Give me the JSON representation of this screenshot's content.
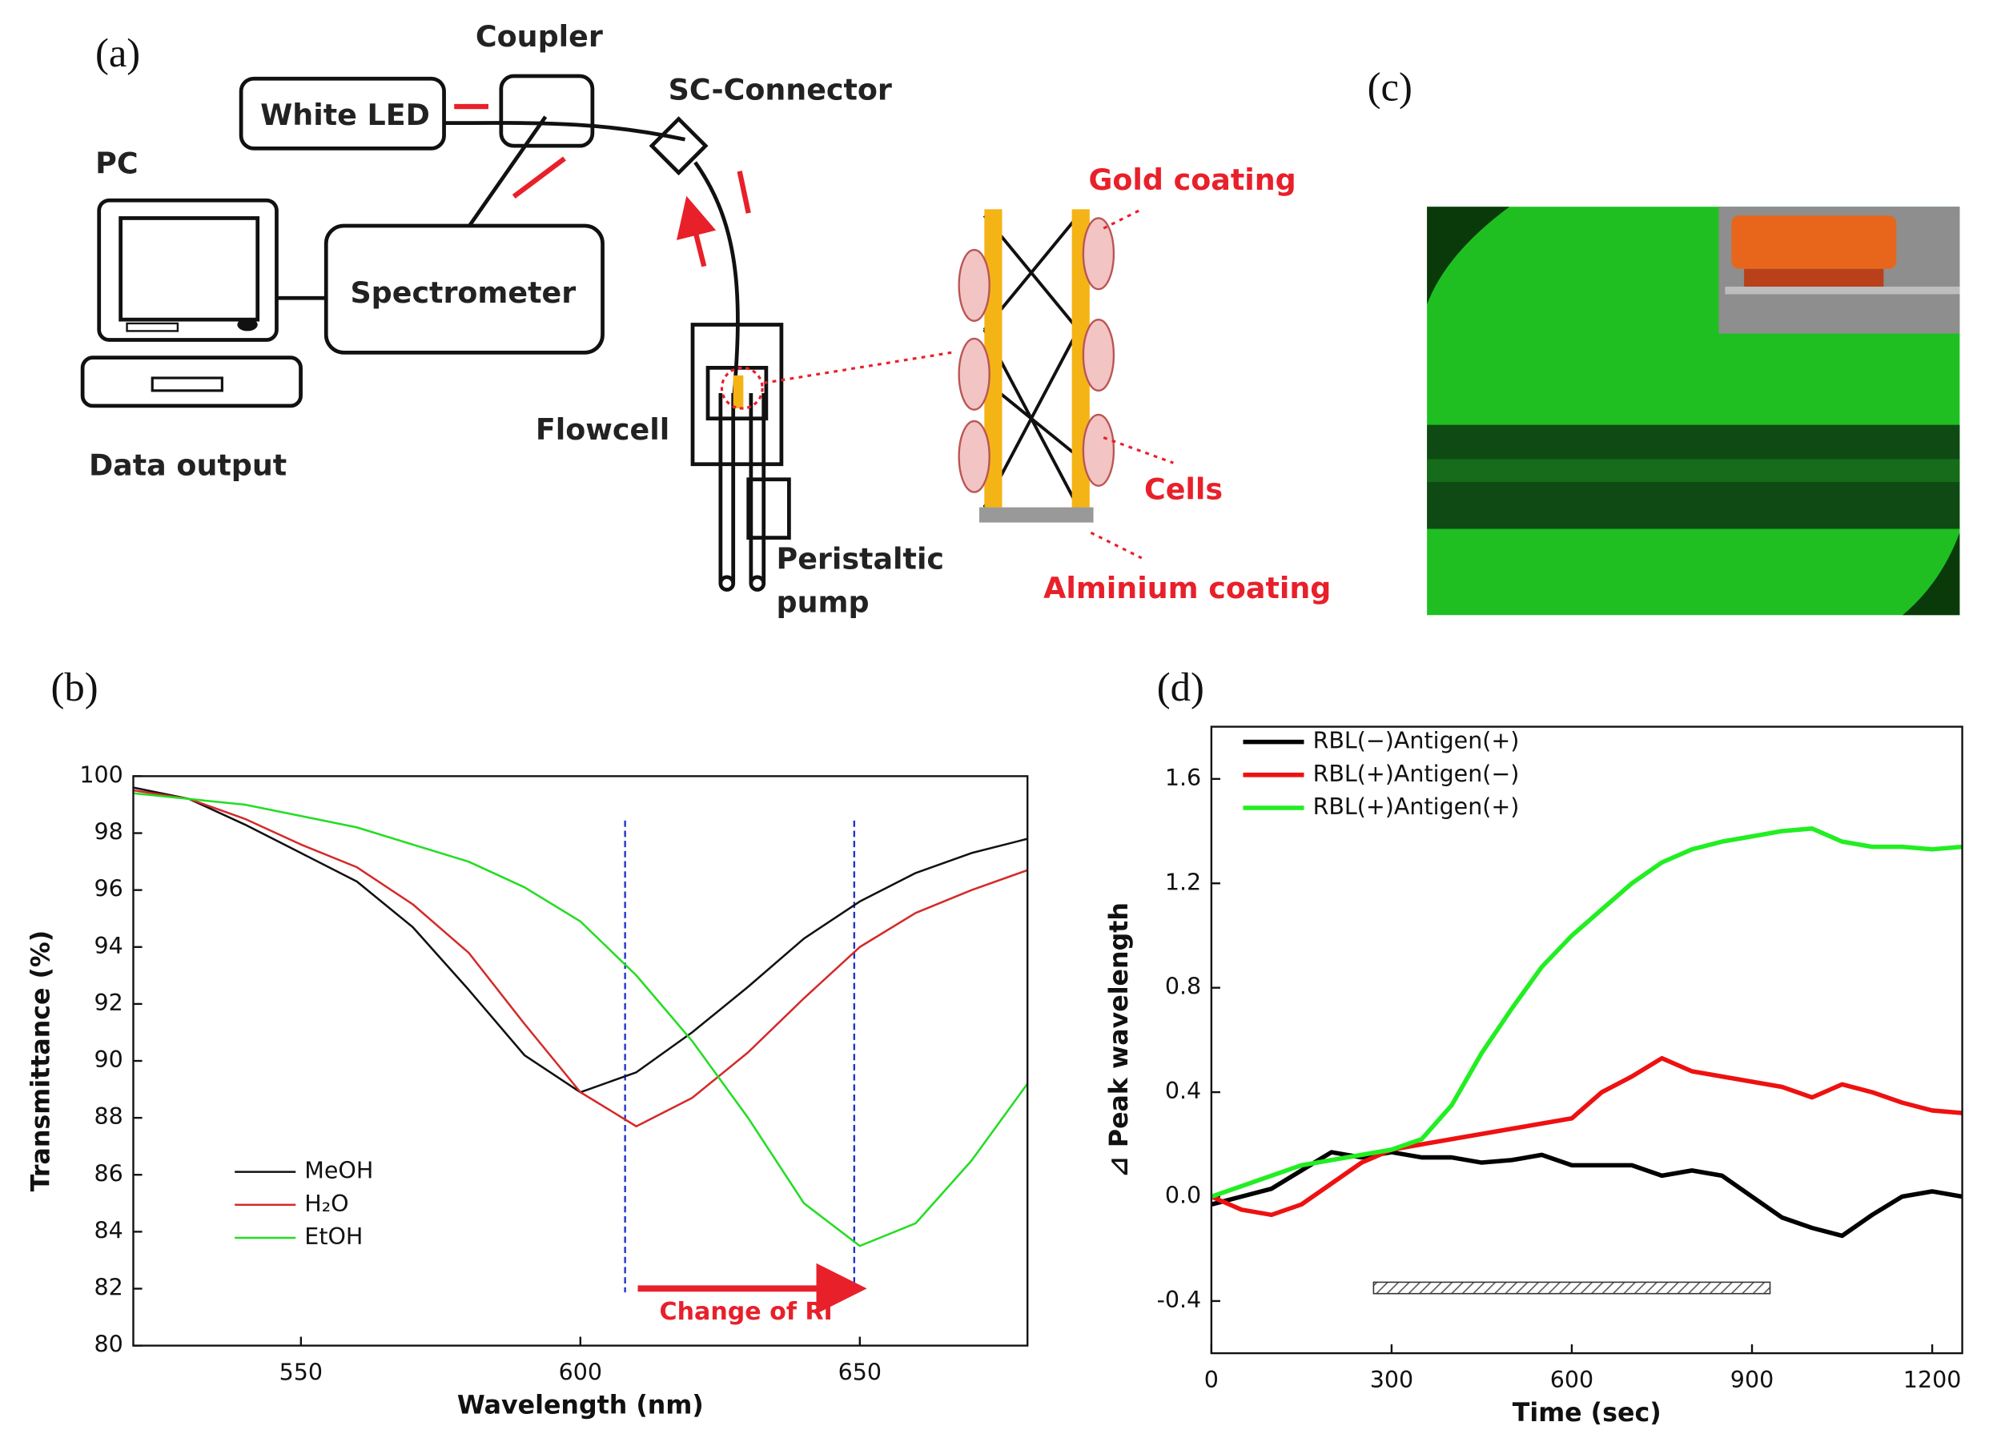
{
  "panel_labels": [
    "(a)",
    "(b)",
    "(c)",
    "(d)"
  ],
  "diagram": {
    "coupler": "Coupler",
    "white_led": "White LED",
    "sc_connector": "SC-Connector",
    "pc": "PC",
    "spectrometer": "Spectrometer",
    "flowcell": "Flowcell",
    "pump": [
      "Peristaltic",
      "pump"
    ],
    "data_output": "Data output",
    "gold": "Gold coating",
    "cells": "Cells",
    "aluminium": "Alminium coating"
  },
  "chart_data": [
    {
      "type": "line",
      "xlabel": "Wavelength (nm)",
      "ylabel": "Transmittance (%)",
      "x": [
        520,
        530,
        540,
        550,
        560,
        570,
        580,
        590,
        600,
        610,
        620,
        630,
        640,
        650,
        660,
        670,
        680
      ],
      "series": [
        {
          "name": "MeOH",
          "color": "#111111",
          "values": [
            99.6,
            99.2,
            98.3,
            97.3,
            96.3,
            94.7,
            92.5,
            90.2,
            88.9,
            89.6,
            91.0,
            92.6,
            94.3,
            95.6,
            96.6,
            97.3,
            97.8
          ]
        },
        {
          "name": "H₂O",
          "color": "#d42a2a",
          "values": [
            99.5,
            99.2,
            98.5,
            97.6,
            96.8,
            95.5,
            93.8,
            91.3,
            88.9,
            87.7,
            88.7,
            90.3,
            92.2,
            94.0,
            95.2,
            96.0,
            96.7
          ]
        },
        {
          "name": "EtOH",
          "color": "#22dd22",
          "values": [
            99.4,
            99.2,
            99.0,
            98.6,
            98.2,
            97.6,
            97.0,
            96.1,
            94.9,
            93.0,
            90.7,
            88.0,
            85.0,
            83.5,
            84.3,
            86.5,
            89.2
          ]
        }
      ],
      "xlim": [
        520,
        680
      ],
      "ylim": [
        80,
        100
      ],
      "xticks": [
        550,
        600,
        650
      ],
      "yticks": [
        80,
        82,
        84,
        86,
        88,
        90,
        92,
        94,
        96,
        98,
        100
      ],
      "legend": "lower left",
      "vlines": [
        608,
        649
      ],
      "annotation": "Change of RI"
    },
    {
      "type": "line",
      "xlabel": "Time (sec)",
      "ylabel": "⊿ Peak wavelength",
      "x": [
        0,
        50,
        100,
        150,
        200,
        250,
        300,
        350,
        400,
        450,
        500,
        550,
        600,
        650,
        700,
        750,
        800,
        850,
        900,
        950,
        1000,
        1050,
        1100,
        1150,
        1200,
        1250
      ],
      "series": [
        {
          "name": "RBL(−)Antigen(+)",
          "color": "#000000",
          "values": [
            -0.03,
            0.0,
            0.03,
            0.1,
            0.17,
            0.15,
            0.17,
            0.15,
            0.15,
            0.13,
            0.14,
            0.16,
            0.12,
            0.12,
            0.12,
            0.08,
            0.1,
            0.08,
            0.0,
            -0.08,
            -0.12,
            -0.15,
            -0.07,
            0.0,
            0.02,
            0.0
          ]
        },
        {
          "name": "RBL(+)Antigen(−)",
          "color": "#ee1111",
          "values": [
            0.0,
            -0.05,
            -0.07,
            -0.03,
            0.05,
            0.13,
            0.18,
            0.2,
            0.22,
            0.24,
            0.26,
            0.28,
            0.3,
            0.4,
            0.46,
            0.53,
            0.48,
            0.46,
            0.44,
            0.42,
            0.38,
            0.43,
            0.4,
            0.36,
            0.33,
            0.32
          ]
        },
        {
          "name": "RBL(+)Antigen(+)",
          "color": "#22ee22",
          "values": [
            0.0,
            0.04,
            0.08,
            0.12,
            0.14,
            0.16,
            0.18,
            0.22,
            0.35,
            0.55,
            0.72,
            0.88,
            1.0,
            1.1,
            1.2,
            1.28,
            1.33,
            1.36,
            1.38,
            1.4,
            1.41,
            1.36,
            1.34,
            1.34,
            1.33,
            1.34
          ]
        }
      ],
      "xlim": [
        0,
        1250
      ],
      "ylim": [
        -0.6,
        1.8
      ],
      "xticks": [
        0,
        300,
        600,
        900,
        1200
      ],
      "yticks": [
        -0.4,
        {
          "value": 0,
          "label": "0.0"
        },
        0.4,
        0.8,
        1.2,
        1.6
      ],
      "legend": "upper left",
      "interval": [
        270,
        930
      ]
    }
  ]
}
